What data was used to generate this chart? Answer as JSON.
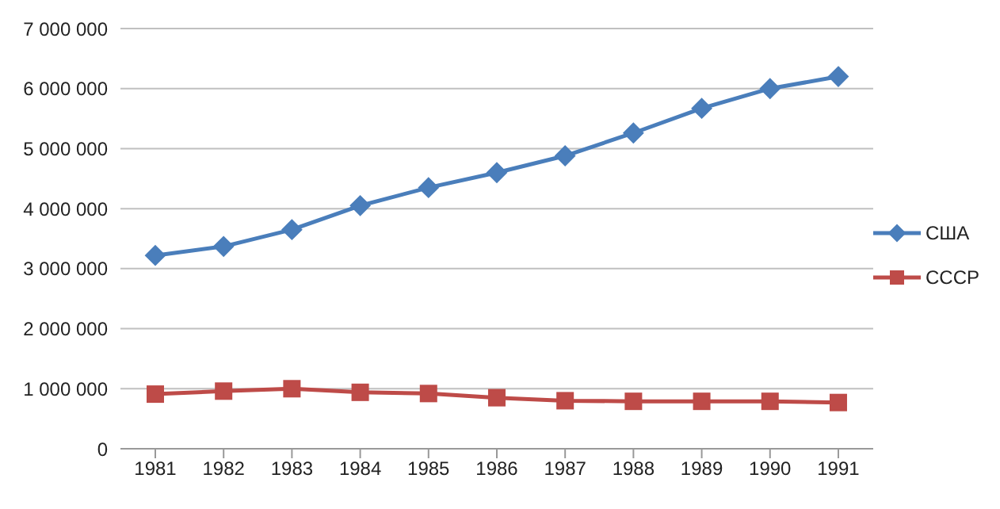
{
  "chart_data": {
    "type": "line",
    "categories": [
      "1981",
      "1982",
      "1983",
      "1984",
      "1985",
      "1986",
      "1987",
      "1988",
      "1989",
      "1990",
      "1991"
    ],
    "series": [
      {
        "name": "США",
        "color": "#4a7ebb",
        "marker": "diamond",
        "values": [
          3220000,
          3370000,
          3650000,
          4050000,
          4350000,
          4600000,
          4880000,
          5260000,
          5670000,
          6000000,
          6200000
        ]
      },
      {
        "name": "СССР",
        "color": "#be4b48",
        "marker": "square",
        "values": [
          910000,
          960000,
          1000000,
          940000,
          920000,
          850000,
          800000,
          790000,
          790000,
          790000,
          770000
        ]
      }
    ],
    "ylim": [
      0,
      7000000
    ],
    "yticks": [
      {
        "value": 0,
        "label": "0"
      },
      {
        "value": 1000000,
        "label": "1 000 000"
      },
      {
        "value": 2000000,
        "label": "2 000 000"
      },
      {
        "value": 3000000,
        "label": "3 000 000"
      },
      {
        "value": 4000000,
        "label": "4 000 000"
      },
      {
        "value": 5000000,
        "label": "5 000 000"
      },
      {
        "value": 6000000,
        "label": "6 000 000"
      },
      {
        "value": 7000000,
        "label": "7 000 000"
      }
    ],
    "grid": "y",
    "legend": "right",
    "line_style": "solid"
  }
}
